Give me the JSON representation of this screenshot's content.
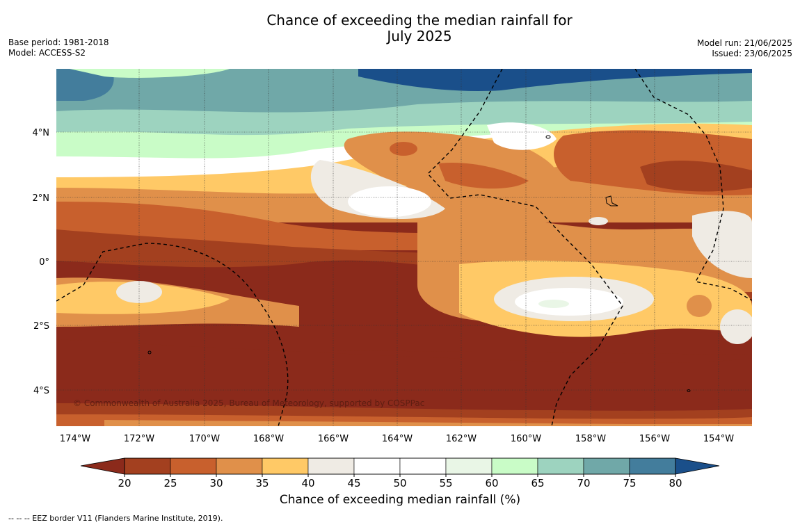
{
  "title": {
    "line1": "Chance of exceeding the median rainfall for",
    "line2": "July 2025"
  },
  "meta_left": {
    "base_period": "Base period: 1981-2018",
    "model": "Model: ACCESS-S2"
  },
  "meta_right": {
    "model_run": "Model run: 21/06/2025",
    "issued": "Issued: 23/06/2025"
  },
  "map": {
    "lat_labels": [
      "4°N",
      "2°N",
      "0°",
      "2°S",
      "4°S"
    ],
    "lon_labels": [
      "174°W",
      "172°W",
      "170°W",
      "168°W",
      "166°W",
      "164°W",
      "162°W",
      "160°W",
      "158°W",
      "156°W",
      "154°W"
    ],
    "copyright": "© Commonwealth of Australia 2025, Bureau of Meteorology, supported by COSPPac"
  },
  "colorbar": {
    "ticks": [
      "20",
      "25",
      "30",
      "35",
      "40",
      "45",
      "50",
      "55",
      "60",
      "65",
      "70",
      "75",
      "80"
    ],
    "colors": [
      "#a3401f",
      "#c8602d",
      "#e0904a",
      "#ffc966",
      "#efebe4",
      "#ffffff",
      "#ffffff",
      "#e9f6e6",
      "#c9fcc7",
      "#9dd3bf",
      "#70a8a8",
      "#437d9c"
    ],
    "under_color": "#8b2a1b",
    "over_color": "#1a4f8a",
    "label": "Chance of exceeding median rainfall (%)"
  },
  "footnote": "--  --  -- EEZ border V11 (Flanders Marine Institute, 2019)."
}
